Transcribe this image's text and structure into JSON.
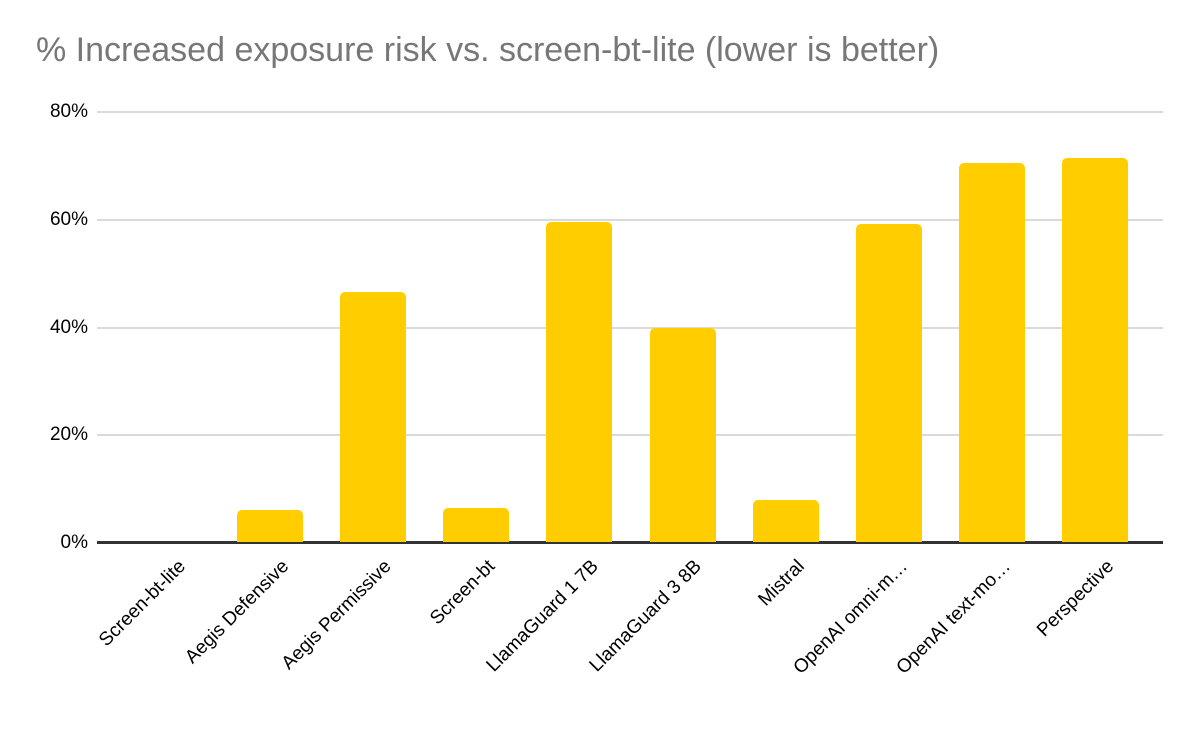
{
  "chart_data": {
    "type": "bar",
    "title": "% Increased exposure risk vs. screen-bt-lite (lower is better)",
    "categories": [
      "Screen-bt-lite",
      "Aegis Defensive",
      "Aegis Permissive",
      "Screen-bt",
      "LlamaGuard 1 7B",
      "LlamaGuard 3 8B",
      "Mistral",
      "OpenAI omni-m…",
      "OpenAI text-mo…",
      "Perspective"
    ],
    "values": [
      0,
      6.0,
      46.6,
      6.4,
      59.5,
      39.9,
      7.9,
      59.2,
      70.6,
      71.5
    ],
    "unit": "%",
    "y_ticks": [
      "0%",
      "20%",
      "40%",
      "60%",
      "80%"
    ],
    "ylim": [
      0,
      80
    ],
    "grid": true,
    "legend": "none",
    "xlabel": "",
    "ylabel": "",
    "colors": {
      "bar": "#FFCD00",
      "title": "#777777",
      "gridline": "#DADADA",
      "axis_line": "#333333",
      "tick_label": "#000000",
      "background": "#FFFFFF"
    }
  }
}
